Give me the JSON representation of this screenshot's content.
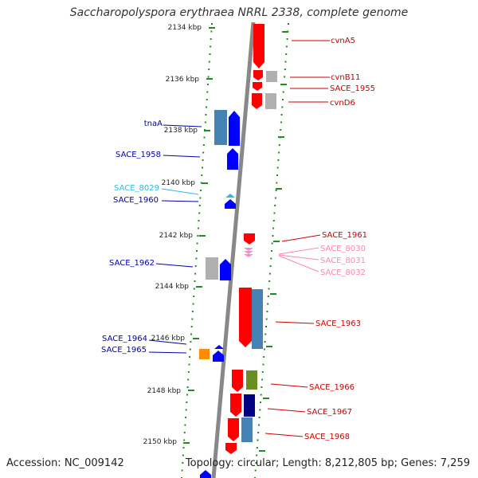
{
  "title": "Saccharopolyspora erythraea NRRL 2338, complete genome",
  "footer": {
    "accession": "Accession: NC_009142",
    "summary": "Topology: circular; Length: 8,212,805 bp; Genes: 7,259"
  },
  "colors": {
    "forward_gene": "#ff0000",
    "reverse_gene": "#0000ff",
    "grey_feature": "#b0b0b0",
    "steelblue_feature": "#4682b4",
    "olive_feature": "#6b8e23",
    "navy_feature": "#000080",
    "orange_feature": "#ff8c00",
    "pink_label": "#ff88aa",
    "cyan_label": "#33bbdd",
    "tick_green": "#228b22",
    "backbone": "#888888"
  },
  "scale_labels": [
    "2134 kbp",
    "2136 kbp",
    "2138 kbp",
    "2140 kbp",
    "2142 kbp",
    "2144 kbp",
    "2146 kbp",
    "2148 kbp",
    "2150 kbp"
  ],
  "left_labels": [
    "tnaA",
    "SACE_1958",
    "SACE_8029",
    "SACE_1960",
    "SACE_1962",
    "SACE_1964",
    "SACE_1965"
  ],
  "right_labels": [
    "cvnA5",
    "cvnB11",
    "SACE_1955",
    "cvnD6",
    "SACE_1961",
    "SACE_8030",
    "SACE_8031",
    "SACE_8032",
    "SACE_1963",
    "SACE_1966",
    "SACE_1967",
    "SACE_1968"
  ]
}
